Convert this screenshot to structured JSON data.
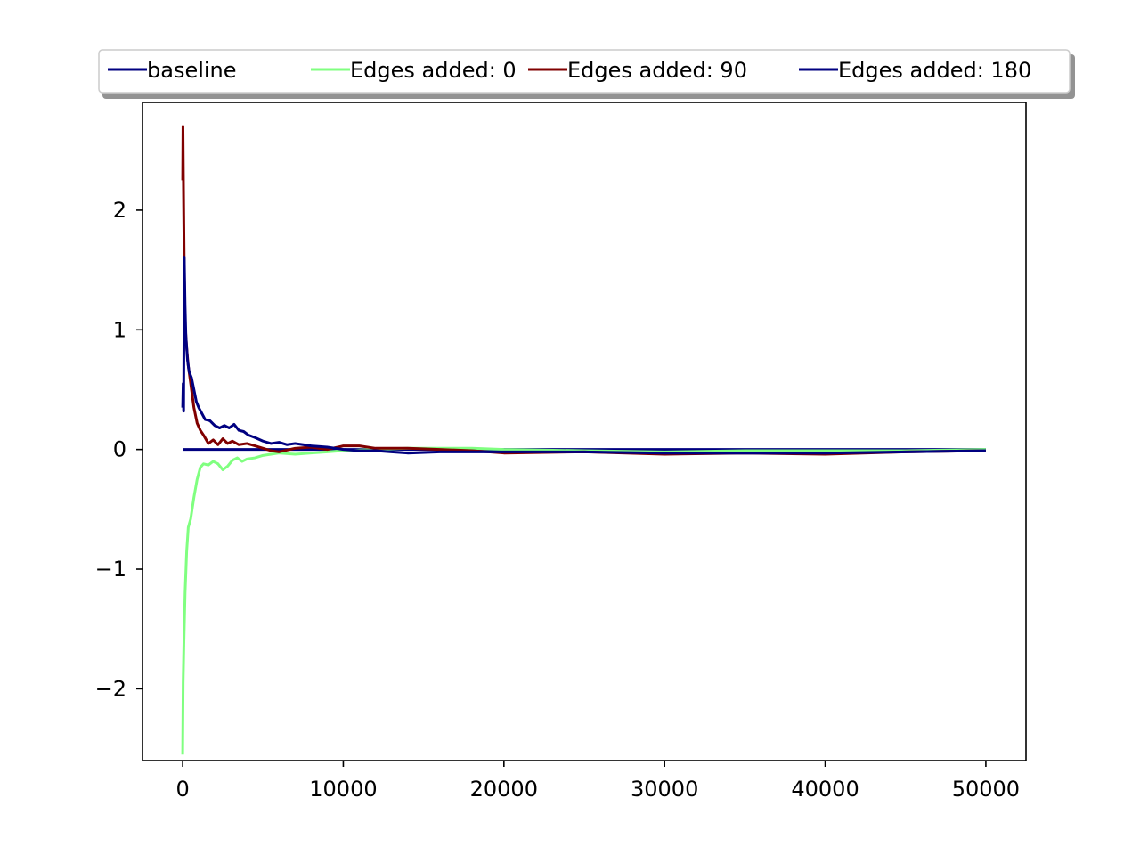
{
  "chart_data": {
    "type": "line",
    "title": "",
    "xlabel": "",
    "ylabel": "",
    "xlim": [
      -2500,
      52500
    ],
    "ylim": [
      -2.6,
      2.9
    ],
    "xticks": [
      {
        "value": 0,
        "label": "0"
      },
      {
        "value": 10000,
        "label": "10000"
      },
      {
        "value": 20000,
        "label": "20000"
      },
      {
        "value": 30000,
        "label": "30000"
      },
      {
        "value": 40000,
        "label": "40000"
      },
      {
        "value": 50000,
        "label": "50000"
      }
    ],
    "yticks": [
      {
        "value": -2,
        "label": "−2"
      },
      {
        "value": -1,
        "label": "−1"
      },
      {
        "value": 0,
        "label": "0"
      },
      {
        "value": 1,
        "label": "1"
      },
      {
        "value": 2,
        "label": "2"
      }
    ],
    "grid": false,
    "legend_position": "top-center-outside",
    "series": [
      {
        "name": "baseline",
        "color": "#000080",
        "x": [
          0,
          50000
        ],
        "y": [
          0,
          0
        ]
      },
      {
        "name": "Edges added: 0",
        "color": "#80ff80",
        "x": [
          0,
          30,
          80,
          150,
          250,
          350,
          500,
          700,
          900,
          1100,
          1300,
          1600,
          1900,
          2200,
          2500,
          2800,
          3100,
          3400,
          3700,
          4000,
          4500,
          5000,
          5500,
          6000,
          7000,
          8000,
          9000,
          10000,
          12000,
          14000,
          16000,
          18000,
          20000,
          25000,
          30000,
          35000,
          40000,
          45000,
          50000
        ],
        "y": [
          -2.55,
          -1.95,
          -1.6,
          -1.2,
          -0.85,
          -0.65,
          -0.58,
          -0.4,
          -0.25,
          -0.15,
          -0.12,
          -0.13,
          -0.1,
          -0.12,
          -0.17,
          -0.14,
          -0.09,
          -0.07,
          -0.1,
          -0.08,
          -0.07,
          -0.05,
          -0.04,
          -0.03,
          -0.04,
          -0.03,
          -0.02,
          -0.01,
          0,
          0.01,
          0.01,
          0.01,
          0,
          -0.01,
          -0.02,
          -0.01,
          -0.01,
          -0.01,
          0
        ]
      },
      {
        "name": "Edges added: 90",
        "color": "#800000",
        "x": [
          0,
          20,
          50,
          100,
          150,
          250,
          350,
          500,
          700,
          900,
          1100,
          1300,
          1600,
          1900,
          2200,
          2500,
          2800,
          3100,
          3500,
          4000,
          4500,
          5000,
          5500,
          6000,
          7000,
          8000,
          9000,
          10000,
          11000,
          12000,
          14000,
          16000,
          18000,
          20000,
          25000,
          30000,
          35000,
          40000,
          45000,
          50000
        ],
        "y": [
          2.25,
          2.7,
          2.2,
          1.5,
          1.05,
          0.85,
          0.7,
          0.55,
          0.35,
          0.22,
          0.16,
          0.12,
          0.05,
          0.08,
          0.04,
          0.09,
          0.05,
          0.07,
          0.04,
          0.05,
          0.03,
          0.01,
          -0.01,
          -0.02,
          0.01,
          0.02,
          0,
          0.03,
          0.03,
          0.01,
          0.01,
          0,
          -0.01,
          -0.03,
          -0.02,
          -0.04,
          -0.03,
          -0.04,
          -0.02,
          -0.01
        ]
      },
      {
        "name": "Edges added: 180",
        "color": "#000080",
        "x": [
          0,
          30,
          60,
          100,
          150,
          200,
          300,
          400,
          550,
          700,
          850,
          1000,
          1200,
          1400,
          1700,
          2000,
          2300,
          2600,
          2900,
          3200,
          3500,
          3800,
          4100,
          4500,
          5000,
          5500,
          6000,
          6500,
          7000,
          7500,
          8000,
          9000,
          10000,
          11000,
          12000,
          13000,
          14000,
          16000,
          18000,
          20000,
          25000,
          30000,
          35000,
          40000,
          45000,
          50000
        ],
        "y": [
          0.35,
          0.55,
          0.32,
          1.6,
          1.2,
          0.95,
          0.75,
          0.65,
          0.6,
          0.5,
          0.4,
          0.35,
          0.3,
          0.25,
          0.24,
          0.2,
          0.18,
          0.2,
          0.18,
          0.21,
          0.16,
          0.15,
          0.12,
          0.1,
          0.07,
          0.05,
          0.06,
          0.04,
          0.05,
          0.04,
          0.03,
          0.02,
          0,
          -0.01,
          -0.01,
          -0.02,
          -0.03,
          -0.02,
          -0.02,
          -0.02,
          -0.02,
          -0.03,
          -0.03,
          -0.03,
          -0.02,
          -0.01
        ]
      }
    ]
  }
}
